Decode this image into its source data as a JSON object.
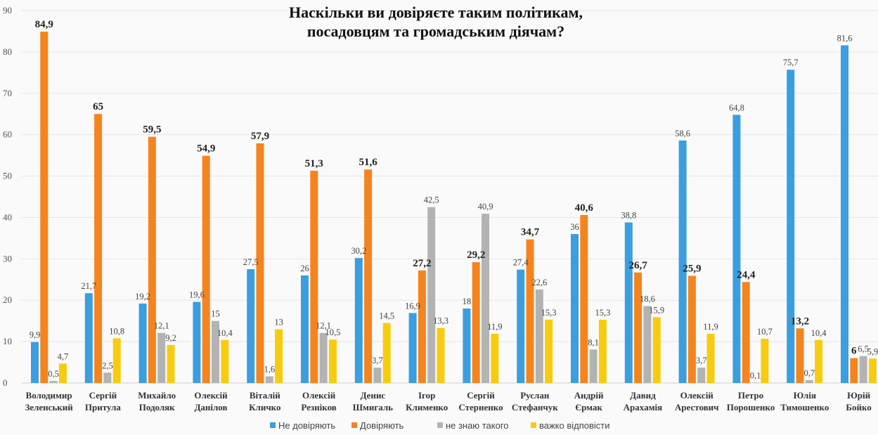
{
  "chart_data": {
    "type": "bar",
    "title": [
      "Наскільки ви довіряєте таким політикам,",
      "посадовцям та громадським діячам?"
    ],
    "xlabel": "",
    "ylabel": "",
    "ylim": [
      0,
      90
    ],
    "yticks": [
      0,
      10,
      20,
      30,
      40,
      50,
      60,
      70,
      80,
      90
    ],
    "grid": true,
    "legend_position": "bottom",
    "categories": [
      [
        "Володимир",
        "Зеленський"
      ],
      [
        "Сергій",
        "Притула"
      ],
      [
        "Михайло",
        "Подоляк"
      ],
      [
        "Олексій",
        "Данілов"
      ],
      [
        "Віталій",
        "Кличко"
      ],
      [
        "Олексій",
        "Резніков"
      ],
      [
        "Денис",
        "Шмигаль"
      ],
      [
        "Ігор",
        "Клименко"
      ],
      [
        "Сергій",
        "Стерненко"
      ],
      [
        "Руслан",
        "Стефанчук"
      ],
      [
        "Андрій",
        "Єрмак"
      ],
      [
        "Давид",
        "Арахамія"
      ],
      [
        "Олексій",
        "Арестович"
      ],
      [
        "Петро",
        "Порошенко"
      ],
      [
        "Юлія",
        "Тимошенко"
      ],
      [
        "Юрій",
        "Бойко"
      ]
    ],
    "series": [
      {
        "name": "Не довіряють",
        "color": "#3b9ee0",
        "bold_labels": false,
        "values": [
          9.9,
          21.7,
          19.2,
          19.6,
          27.5,
          26,
          30.2,
          16.9,
          18,
          27.4,
          36,
          38.8,
          58.6,
          64.8,
          75.7,
          81.6
        ]
      },
      {
        "name": "Довіряють",
        "color": "#f5841f",
        "bold_labels": true,
        "values": [
          84.9,
          65,
          59.5,
          54.9,
          57.9,
          51.3,
          51.6,
          27.2,
          29.2,
          34.7,
          40.6,
          26.7,
          25.9,
          24.4,
          13.2,
          6
        ]
      },
      {
        "name": "не знаю такого",
        "color": "#b3b3b3",
        "bold_labels": false,
        "values": [
          0.5,
          2.5,
          12.1,
          15,
          1.6,
          12.1,
          3.7,
          42.5,
          40.9,
          22.6,
          8.1,
          18.6,
          3.7,
          0.1,
          0.7,
          6.5
        ]
      },
      {
        "name": "важко відповісти",
        "color": "#f7cc0f",
        "bold_labels": false,
        "values": [
          4.7,
          10.8,
          9.2,
          10.4,
          13,
          10.5,
          14.5,
          13.3,
          11.9,
          15.3,
          15.3,
          15.9,
          11.9,
          10.7,
          10.4,
          5.9
        ]
      }
    ]
  }
}
